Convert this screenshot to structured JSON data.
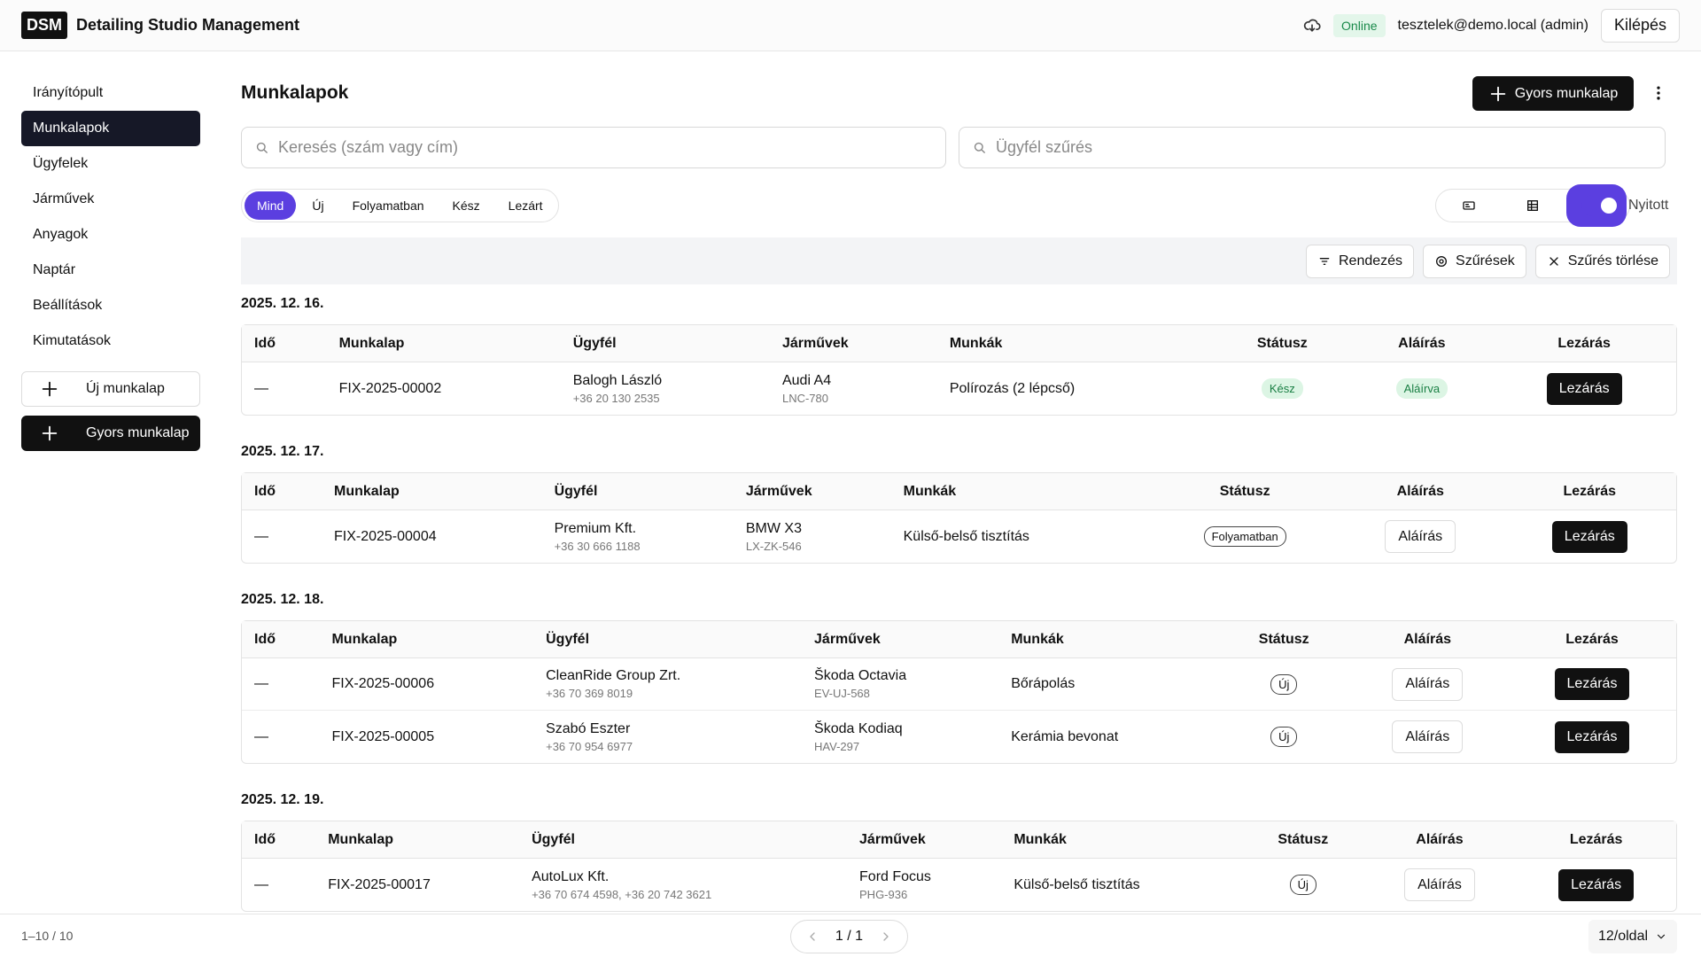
{
  "header": {
    "logo": "DSM",
    "app_name": "Detailing Studio Management",
    "status": "Online",
    "user": "tesztelek@demo.local (admin)",
    "logout": "Kilépés"
  },
  "sidebar": {
    "items": [
      {
        "label": "Irányítópult"
      },
      {
        "label": "Munkalapok",
        "active": true
      },
      {
        "label": "Ügyfelek"
      },
      {
        "label": "Járművek"
      },
      {
        "label": "Anyagok"
      },
      {
        "label": "Naptár"
      },
      {
        "label": "Beállítások"
      },
      {
        "label": "Kimutatások"
      }
    ],
    "new_button": "Új munkalap",
    "quick_button": "Gyors munkalap"
  },
  "page": {
    "title": "Munkalapok",
    "quick_button": "Gyors munkalap",
    "search_placeholder": "Keresés (szám vagy cím)",
    "client_filter_placeholder": "Ügyfél szűrés",
    "tabs": [
      {
        "label": "Mind",
        "active": true
      },
      {
        "label": "Új"
      },
      {
        "label": "Folyamatban"
      },
      {
        "label": "Kész"
      },
      {
        "label": "Lezárt"
      }
    ],
    "open_toggle": "Nyitott",
    "toolbar": [
      "Rendezés",
      "Szűrések",
      "Szűrés törlése"
    ]
  },
  "columns": [
    "Idő",
    "Munkalap",
    "Ügyfél",
    "Járművek",
    "Munkák",
    "Státusz",
    "Aláírás",
    "Lezárás"
  ],
  "groups": [
    {
      "date": "2025. 12. 16.",
      "rows": [
        {
          "time": "—",
          "id": "FIX-2025-00002",
          "client": "Balogh László",
          "phone": "+36 20 130 2535",
          "vehicle": "Audi A4",
          "plate": "LNC-780",
          "job": "Polírozás (2 lépcső)",
          "status": "Kész",
          "status_color": "#dcf5e4",
          "signature": "Aláírva",
          "signed": true,
          "close": "Lezárás"
        }
      ]
    },
    {
      "date": "2025. 12. 17.",
      "rows": [
        {
          "time": "—",
          "id": "FIX-2025-00004",
          "client": "Premium Kft.",
          "phone": "+36 30 666 1188",
          "vehicle": "BMW X3",
          "plate": "LX-ZK-546",
          "job": "Külső-belső tisztítás",
          "status": "Folyamatban",
          "signature": "Aláírás",
          "signed": false,
          "close": "Lezárás"
        }
      ]
    },
    {
      "date": "2025. 12. 18.",
      "rows": [
        {
          "time": "—",
          "id": "FIX-2025-00006",
          "client": "CleanRide Group Zrt.",
          "phone": "+36 70 369 8019",
          "vehicle": "Škoda Octavia",
          "plate": "EV-UJ-568",
          "job": "Bőrápolás",
          "status": "Új",
          "signature": "Aláírás",
          "signed": false,
          "close": "Lezárás"
        },
        {
          "time": "—",
          "id": "FIX-2025-00005",
          "client": "Szabó Eszter",
          "phone": "+36 70 954 6977",
          "vehicle": "Škoda Kodiaq",
          "plate": "HAV-297",
          "job": "Kerámia bevonat",
          "status": "Új",
          "signature": "Aláírás",
          "signed": false,
          "close": "Lezárás"
        }
      ]
    },
    {
      "date": "2025. 12. 19.",
      "rows": [
        {
          "time": "—",
          "id": "FIX-2025-00017",
          "client": "AutoLux Kft.",
          "phone": "+36 70 674 4598, +36 20 742 3621",
          "vehicle": "Ford Focus",
          "plate": "PHG-936",
          "job": "Külső-belső tisztítás",
          "status": "Új",
          "signature": "Aláírás",
          "signed": false,
          "close": "Lezárás"
        }
      ]
    }
  ],
  "footer": {
    "range": "1–10 / 10",
    "page": "1 / 1",
    "per_page": "12/oldal"
  }
}
